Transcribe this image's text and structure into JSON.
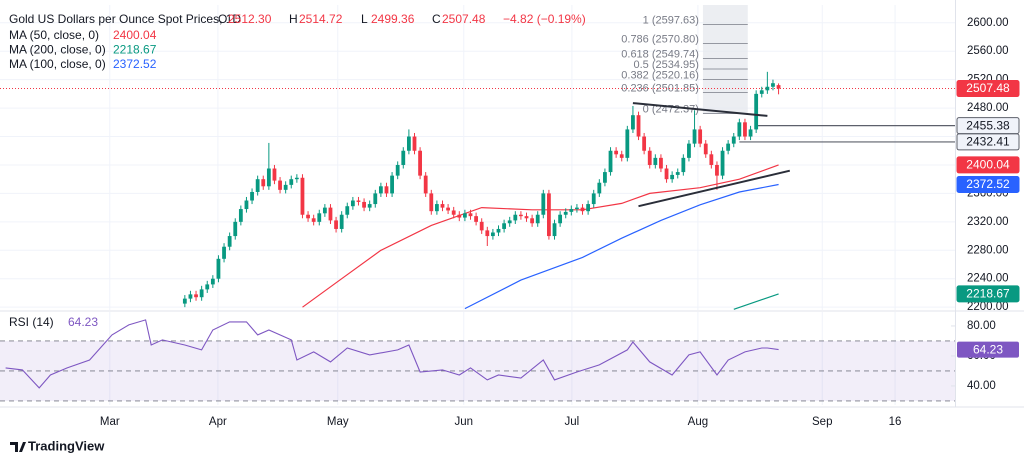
{
  "chart_data": {
    "type": "candlestick",
    "title": "Gold US Dollars per Ounce Spot Prices, 1D",
    "ohlc_labels": [
      {
        "key": "O",
        "text": "2512.30"
      },
      {
        "key": "H",
        "text": "2514.72"
      },
      {
        "key": "L",
        "text": "2499.36"
      },
      {
        "key": "C",
        "text": "2507.48"
      }
    ],
    "change_label": "−4.82 (−0.19%)",
    "up_color": "#089981",
    "down_color": "#f23645",
    "open": [
      2205,
      2212,
      2218,
      2214,
      2225,
      2232,
      2240,
      2268,
      2285,
      2300,
      2320,
      2338,
      2350,
      2362,
      2380,
      2370,
      2395,
      2378,
      2365,
      2372,
      2380,
      2382,
      2330,
      2325,
      2320,
      2332,
      2340,
      2322,
      2310,
      2330,
      2342,
      2350,
      2348,
      2340,
      2345,
      2360,
      2370,
      2360,
      2385,
      2400,
      2420,
      2440,
      2420,
      2385,
      2360,
      2335,
      2345,
      2340,
      2336,
      2330,
      2326,
      2332,
      2328,
      2320,
      2308,
      2300,
      2305,
      2310,
      2318,
      2322,
      2330,
      2328,
      2325,
      2318,
      2330,
      2360,
      2300,
      2318,
      2330,
      2334,
      2338,
      2340,
      2335,
      2345,
      2360,
      2375,
      2390,
      2420,
      2415,
      2410,
      2450,
      2470,
      2440,
      2420,
      2400,
      2410,
      2395,
      2380,
      2386,
      2390,
      2410,
      2430,
      2450,
      2430,
      2415,
      2400,
      2385,
      2420,
      2430,
      2440,
      2460,
      2440,
      2450,
      2500,
      2505,
      2510,
      2512.3
    ],
    "high": [
      2217,
      2223,
      2223,
      2230,
      2237,
      2245,
      2273,
      2290,
      2305,
      2325,
      2343,
      2355,
      2367,
      2385,
      2385,
      2431,
      2400,
      2383,
      2377,
      2385,
      2387,
      2387,
      2335,
      2330,
      2337,
      2345,
      2345,
      2327,
      2335,
      2347,
      2355,
      2355,
      2353,
      2350,
      2365,
      2375,
      2375,
      2390,
      2405,
      2425,
      2450,
      2445,
      2425,
      2390,
      2365,
      2350,
      2350,
      2345,
      2341,
      2335,
      2337,
      2337,
      2333,
      2325,
      2313,
      2310,
      2315,
      2323,
      2327,
      2335,
      2335,
      2333,
      2330,
      2335,
      2365,
      2365,
      2323,
      2335,
      2339,
      2343,
      2345,
      2345,
      2350,
      2365,
      2380,
      2395,
      2425,
      2425,
      2420,
      2455,
      2483,
      2475,
      2445,
      2425,
      2415,
      2415,
      2400,
      2391,
      2395,
      2415,
      2435,
      2477,
      2455,
      2435,
      2420,
      2405,
      2425,
      2435,
      2445,
      2465,
      2465,
      2455,
      2505,
      2510,
      2531,
      2520,
      2514.72
    ],
    "low": [
      2200,
      2207,
      2209,
      2209,
      2220,
      2227,
      2235,
      2263,
      2280,
      2295,
      2315,
      2333,
      2345,
      2357,
      2365,
      2365,
      2373,
      2360,
      2360,
      2367,
      2375,
      2325,
      2320,
      2315,
      2315,
      2327,
      2317,
      2305,
      2305,
      2325,
      2337,
      2343,
      2335,
      2335,
      2340,
      2355,
      2355,
      2355,
      2380,
      2395,
      2415,
      2415,
      2380,
      2355,
      2330,
      2330,
      2335,
      2331,
      2325,
      2321,
      2321,
      2323,
      2315,
      2303,
      2286,
      2295,
      2300,
      2305,
      2313,
      2317,
      2323,
      2320,
      2313,
      2313,
      2325,
      2295,
      2295,
      2313,
      2325,
      2329,
      2333,
      2330,
      2330,
      2340,
      2355,
      2370,
      2385,
      2410,
      2405,
      2405,
      2445,
      2435,
      2415,
      2395,
      2395,
      2390,
      2375,
      2375,
      2381,
      2385,
      2405,
      2425,
      2425,
      2410,
      2395,
      2365,
      2380,
      2415,
      2425,
      2435,
      2435,
      2435,
      2445,
      2495,
      2500,
      2505,
      2499.36
    ],
    "close": [
      2212,
      2218,
      2214,
      2225,
      2232,
      2240,
      2268,
      2285,
      2300,
      2320,
      2338,
      2350,
      2362,
      2380,
      2370,
      2395,
      2378,
      2365,
      2372,
      2380,
      2382,
      2330,
      2325,
      2320,
      2332,
      2340,
      2322,
      2310,
      2330,
      2342,
      2350,
      2348,
      2340,
      2345,
      2360,
      2370,
      2360,
      2385,
      2400,
      2420,
      2440,
      2420,
      2385,
      2360,
      2335,
      2345,
      2340,
      2336,
      2330,
      2326,
      2332,
      2328,
      2320,
      2308,
      2300,
      2305,
      2310,
      2318,
      2322,
      2330,
      2328,
      2325,
      2318,
      2330,
      2360,
      2300,
      2318,
      2330,
      2334,
      2338,
      2340,
      2335,
      2345,
      2360,
      2375,
      2390,
      2420,
      2415,
      2410,
      2450,
      2470,
      2440,
      2420,
      2400,
      2410,
      2395,
      2380,
      2386,
      2390,
      2410,
      2430,
      2450,
      2430,
      2415,
      2400,
      2385,
      2420,
      2430,
      2440,
      2460,
      2440,
      2450,
      2500,
      2505,
      2510,
      2515,
      2507.48
    ],
    "xlim": [
      -33,
      137.5
    ],
    "xticks": [
      {
        "value": -13.4,
        "label": "Mar"
      },
      {
        "value": 5.9,
        "label": "Apr"
      },
      {
        "value": 27.3,
        "label": "May"
      },
      {
        "value": 49.8,
        "label": "Jun"
      },
      {
        "value": 69.1,
        "label": "Jul"
      },
      {
        "value": 91.6,
        "label": "Aug"
      },
      {
        "value": 113.8,
        "label": "Sep"
      },
      {
        "value": 126.8,
        "label": "16"
      }
    ],
    "ylim": [
      2196,
      2625
    ],
    "yticks": [
      {
        "value": 2200,
        "label": "2200.00"
      },
      {
        "value": 2240,
        "label": "2240.00"
      },
      {
        "value": 2280,
        "label": "2280.00"
      },
      {
        "value": 2320,
        "label": "2320.00"
      },
      {
        "value": 2360,
        "label": "2360.00"
      },
      {
        "value": 2400,
        "label": "2400.00"
      },
      {
        "value": 2440,
        "label": "2440.00"
      },
      {
        "value": 2480,
        "label": "2480.00"
      },
      {
        "value": 2520,
        "label": "2520.00"
      },
      {
        "value": 2560,
        "label": "2560.00"
      },
      {
        "value": 2600,
        "label": "2600.00"
      }
    ],
    "series": [
      {
        "name": "MA (50, close, 0)",
        "color": "#f23645",
        "x": [
          21,
          28,
          35,
          44,
          53,
          62,
          71,
          78,
          83,
          92,
          99,
          106
        ],
        "values": [
          2200,
          2240,
          2280,
          2315,
          2340,
          2337,
          2337,
          2346,
          2360,
          2368,
          2380,
          2400.04
        ]
      },
      {
        "name": "MA (200, close, 0)",
        "color": "#089981",
        "x": [
          98,
          106
        ],
        "values": [
          2197,
          2218.67
        ]
      },
      {
        "name": "MA (100, close, 0)",
        "color": "#2962ff",
        "x": [
          50,
          60,
          71,
          78,
          85,
          92,
          99,
          106
        ],
        "values": [
          2198,
          2238,
          2270,
          2297,
          2322,
          2344,
          2362,
          2372.52
        ]
      }
    ],
    "trendlines": [
      {
        "x": [
          80,
          104
        ],
        "values": [
          2487,
          2469
        ]
      },
      {
        "x": [
          81,
          108
        ],
        "values": [
          2342,
          2392
        ]
      }
    ],
    "levels": [
      {
        "value": 2455.38,
        "from": 102
      },
      {
        "value": 2432.41,
        "from": 99
      }
    ],
    "fib": {
      "from": 92.5,
      "to": 100.5,
      "levels": [
        {
          "value": 2597.63,
          "label": "1 (2597.63)"
        },
        {
          "value": 2570.8,
          "label": "0.786 (2570.80)"
        },
        {
          "value": 2549.74,
          "label": "0.618 (2549.74)"
        },
        {
          "value": 2534.95,
          "label": "0.5 (2534.95)"
        },
        {
          "value": 2520.16,
          "label": "0.382 (2520.16)"
        },
        {
          "value": 2501.85,
          "label": "0.236 (2501.85)"
        },
        {
          "value": 2472.37,
          "label": "0 (2472.37)"
        }
      ]
    },
    "rsi": {
      "name": "RSI (14)",
      "color": "#7e57c2",
      "x": [
        -32,
        -29,
        -26,
        -24,
        -21,
        -17,
        -13,
        -10,
        -7,
        -6,
        -4,
        0,
        3,
        5,
        8,
        11,
        13,
        15,
        19,
        20,
        23,
        26,
        29,
        33,
        38,
        40,
        42,
        46,
        49,
        51,
        54,
        56,
        60,
        64,
        66,
        70,
        74,
        79,
        80,
        83,
        87,
        90,
        92,
        95,
        97,
        100,
        103,
        104,
        106
      ],
      "values": [
        52,
        50.7,
        38.7,
        47.3,
        52,
        57.3,
        74,
        80.7,
        84,
        67.3,
        70.7,
        67.3,
        64,
        77.3,
        82.7,
        82.7,
        74,
        77.3,
        70.7,
        57.3,
        62.7,
        56,
        65.3,
        60.7,
        64,
        67.3,
        49.3,
        50.7,
        47.3,
        52,
        44,
        47.3,
        45.3,
        57.3,
        44,
        49.3,
        54,
        64,
        69.3,
        56,
        47.3,
        60.7,
        62.7,
        47.3,
        57.3,
        62.7,
        65.3,
        65.3,
        64.23
      ],
      "ylim": [
        27.3,
        89.3
      ],
      "yticks": [
        {
          "value": 80,
          "label": "80.00"
        },
        {
          "value": 60,
          "label": "60.00"
        },
        {
          "value": 40,
          "label": "40.00"
        }
      ],
      "bands": [
        70,
        50,
        30
      ]
    },
    "branding": "TradingView"
  }
}
